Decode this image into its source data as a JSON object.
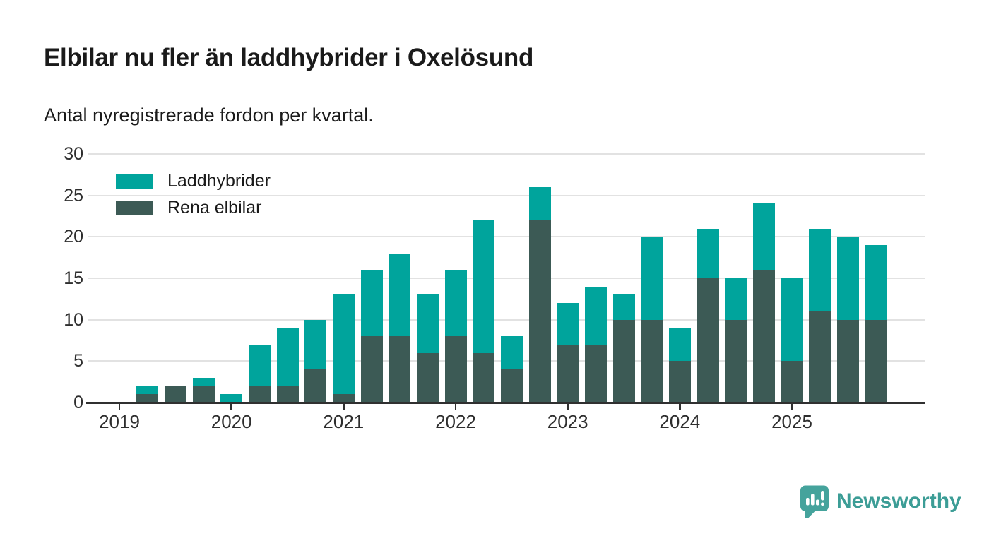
{
  "header": {
    "title": "Elbilar nu fler än laddhybrider i Oxelösund",
    "subtitle": "Antal nyregistrerade fordon per kvartal."
  },
  "legend": {
    "items": [
      {
        "label": "Laddhybrider",
        "color": "#00a49c"
      },
      {
        "label": "Rena elbilar",
        "color": "#3c5a55"
      }
    ]
  },
  "brand": {
    "name": "Newsworthy",
    "icon": "newsworthy-speech-bubble-bar-chart-icon",
    "icon_color": "#45a39c",
    "text_color": "#3c9d96"
  },
  "chart_data": {
    "type": "bar",
    "stacked": true,
    "title": "Elbilar nu fler än laddhybrider i Oxelösund",
    "subtitle": "Antal nyregistrerade fordon per kvartal.",
    "xlabel": "",
    "ylabel": "",
    "ylim": [
      0,
      30
    ],
    "yticks": [
      0,
      5,
      10,
      15,
      20,
      25,
      30
    ],
    "grid": "horizontal",
    "gridline_color": "#e2e2e2",
    "axis_line_color": "#303030",
    "axis_text_color": "#2e2e2e",
    "legend_position": "top-left",
    "categories": [
      "2019 Q1",
      "2019 Q2",
      "2019 Q3",
      "2019 Q4",
      "2020 Q1",
      "2020 Q2",
      "2020 Q3",
      "2020 Q4",
      "2021 Q1",
      "2021 Q2",
      "2021 Q3",
      "2021 Q4",
      "2022 Q1",
      "2022 Q2",
      "2022 Q3",
      "2022 Q4",
      "2023 Q1",
      "2023 Q2",
      "2023 Q3",
      "2023 Q4",
      "2024 Q1",
      "2024 Q2",
      "2024 Q3",
      "2024 Q4",
      "2025 Q1",
      "2025 Q2",
      "2025 Q3",
      "2025 Q4"
    ],
    "x_year_labels": [
      "2019",
      "2020",
      "2021",
      "2022",
      "2023",
      "2024",
      "2025"
    ],
    "series": [
      {
        "name": "Laddhybrider",
        "color": "#00a49c",
        "stack_position": "top",
        "values": [
          0,
          1,
          0,
          1,
          1,
          5,
          7,
          6,
          12,
          8,
          10,
          7,
          8,
          16,
          4,
          4,
          5,
          7,
          3,
          10,
          4,
          6,
          5,
          8,
          10,
          10,
          10,
          9
        ]
      },
      {
        "name": "Rena elbilar",
        "color": "#3c5a55",
        "stack_position": "bottom",
        "values": [
          0,
          1,
          2,
          2,
          0,
          2,
          2,
          4,
          1,
          8,
          8,
          6,
          8,
          6,
          4,
          22,
          7,
          7,
          10,
          10,
          5,
          15,
          10,
          16,
          5,
          11,
          10,
          10
        ]
      }
    ],
    "totals": [
      0,
      2,
      2,
      3,
      1,
      7,
      9,
      10,
      13,
      16,
      18,
      13,
      16,
      22,
      8,
      26,
      12,
      14,
      13,
      20,
      9,
      21,
      15,
      24,
      15,
      21,
      20,
      19
    ]
  }
}
